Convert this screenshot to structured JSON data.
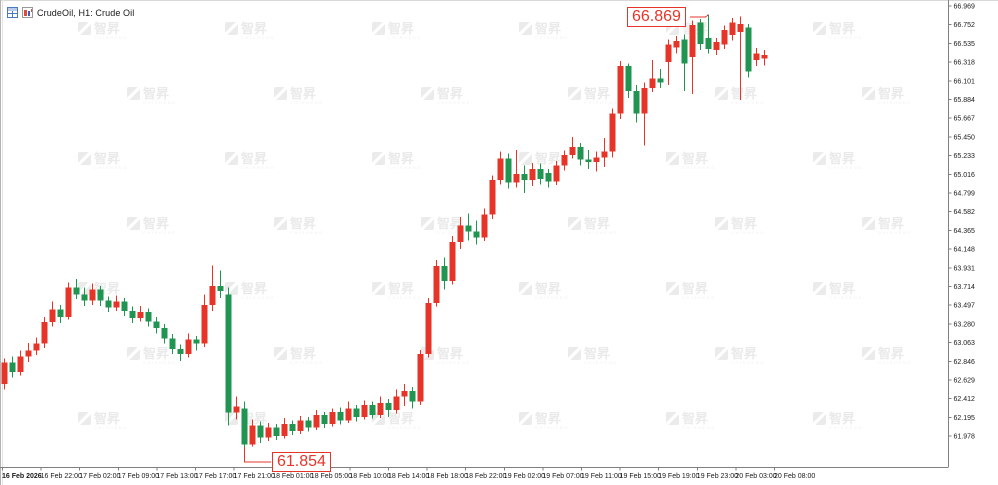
{
  "window": {
    "title": "CrudeOil, H1:  Crude Oil"
  },
  "colors": {
    "bullish": "#e63528",
    "bearish": "#209552",
    "axis_line": "#808080",
    "axis_text": "#1a1a1a",
    "callout": "#e63528",
    "watermark": "#ebebeb",
    "background": "#ffffff"
  },
  "watermark": {
    "text": "智昇",
    "subtext": "CHISHENG"
  },
  "callouts": {
    "high": {
      "label": "66.869",
      "price": 66.869,
      "candle_index": 88
    },
    "low": {
      "label": "61.854",
      "price": 61.854,
      "candle_index": 30
    }
  },
  "axes": {
    "y_labels": [
      "66.969",
      "66.752",
      "66.535",
      "66.318",
      "66.101",
      "65.884",
      "65.667",
      "65.450",
      "65.233",
      "65.016",
      "64.799",
      "64.582",
      "64.365",
      "64.148",
      "63.931",
      "63.714",
      "63.497",
      "63.280",
      "63.063",
      "62.846",
      "62.629",
      "62.412",
      "62.195",
      "61.978"
    ],
    "x_labels": [
      "16 Feb 2026",
      "16 Feb 22:00",
      "17 Feb 02:00",
      "17 Feb 09:00",
      "17 Feb 13:00",
      "17 Feb 17:00",
      "17 Feb 21:00",
      "18 Feb 01:00",
      "18 Feb 05:00",
      "18 Feb 10:00",
      "18 Feb 14:00",
      "18 Feb 18:00",
      "18 Feb 22:00",
      "19 Feb 02:00",
      "19 Feb 07:00",
      "19 Feb 11:00",
      "19 Feb 15:00",
      "19 Feb 19:00",
      "19 Feb 23:00",
      "20 Feb 03:00",
      "20 Feb 08:00"
    ]
  },
  "chart_data": {
    "type": "candlestick",
    "symbol": "CrudeOil",
    "timeframe": "H1",
    "title": "CrudeOil, H1:  Crude Oil",
    "color_convention": "red = bullish (up), green = bearish (down)",
    "price_step": 0.217,
    "y_range": [
      61.978,
      66.969
    ],
    "high": 66.869,
    "low": 61.854,
    "grid": false,
    "candles_ohlc": [
      [
        62.58,
        62.88,
        62.52,
        62.83
      ],
      [
        62.83,
        62.9,
        62.66,
        62.72
      ],
      [
        62.72,
        62.97,
        62.68,
        62.9
      ],
      [
        62.9,
        63.06,
        62.84,
        62.97
      ],
      [
        62.97,
        63.12,
        62.92,
        63.05
      ],
      [
        63.05,
        63.36,
        63.0,
        63.3
      ],
      [
        63.3,
        63.54,
        63.25,
        63.45
      ],
      [
        63.45,
        63.5,
        63.29,
        63.36
      ],
      [
        63.36,
        63.76,
        63.33,
        63.7
      ],
      [
        63.7,
        63.8,
        63.57,
        63.62
      ],
      [
        63.62,
        63.7,
        63.49,
        63.55
      ],
      [
        63.55,
        63.75,
        63.5,
        63.68
      ],
      [
        63.68,
        63.72,
        63.49,
        63.55
      ],
      [
        63.55,
        63.6,
        63.42,
        63.47
      ],
      [
        63.47,
        63.61,
        63.43,
        63.54
      ],
      [
        63.54,
        63.58,
        63.37,
        63.43
      ],
      [
        63.43,
        63.48,
        63.29,
        63.35
      ],
      [
        63.35,
        63.49,
        63.31,
        63.42
      ],
      [
        63.42,
        63.46,
        63.25,
        63.31
      ],
      [
        63.31,
        63.36,
        63.17,
        63.23
      ],
      [
        63.23,
        63.28,
        63.05,
        63.11
      ],
      [
        63.11,
        63.16,
        62.93,
        62.99
      ],
      [
        62.99,
        63.04,
        62.85,
        62.93
      ],
      [
        62.93,
        63.17,
        62.89,
        63.1
      ],
      [
        63.1,
        63.14,
        62.97,
        63.05
      ],
      [
        63.05,
        63.62,
        63.01,
        63.5
      ],
      [
        63.5,
        63.96,
        63.43,
        63.72
      ],
      [
        63.72,
        63.9,
        63.58,
        63.66
      ],
      [
        63.62,
        63.7,
        62.1,
        62.25
      ],
      [
        62.25,
        62.44,
        62.17,
        62.32
      ],
      [
        62.3,
        62.38,
        61.854,
        61.88
      ],
      [
        61.88,
        62.17,
        61.86,
        62.1
      ],
      [
        62.1,
        62.15,
        61.9,
        61.96
      ],
      [
        61.96,
        62.13,
        61.92,
        62.08
      ],
      [
        62.08,
        62.12,
        61.93,
        61.98
      ],
      [
        61.98,
        62.19,
        61.95,
        62.12
      ],
      [
        62.12,
        62.16,
        61.99,
        62.04
      ],
      [
        62.04,
        62.21,
        62.0,
        62.16
      ],
      [
        62.16,
        62.2,
        62.03,
        62.08
      ],
      [
        62.08,
        62.28,
        62.05,
        62.22
      ],
      [
        62.22,
        62.26,
        62.07,
        62.12
      ],
      [
        62.12,
        62.3,
        62.09,
        62.26
      ],
      [
        62.26,
        62.31,
        62.11,
        62.16
      ],
      [
        62.16,
        62.38,
        62.13,
        62.3
      ],
      [
        62.3,
        62.34,
        62.15,
        62.2
      ],
      [
        62.2,
        62.39,
        62.17,
        62.34
      ],
      [
        62.34,
        62.38,
        62.18,
        62.22
      ],
      [
        62.22,
        62.44,
        62.19,
        62.36
      ],
      [
        62.36,
        62.41,
        62.2,
        62.28
      ],
      [
        62.28,
        62.52,
        62.24,
        62.44
      ],
      [
        62.44,
        62.58,
        62.33,
        62.5
      ],
      [
        62.5,
        62.55,
        62.3,
        62.38
      ],
      [
        62.38,
        62.98,
        62.34,
        62.93
      ],
      [
        62.93,
        63.58,
        62.89,
        63.52
      ],
      [
        63.52,
        64.02,
        63.48,
        63.95
      ],
      [
        63.95,
        64.05,
        63.68,
        63.78
      ],
      [
        63.78,
        64.3,
        63.74,
        64.23
      ],
      [
        64.23,
        64.52,
        64.15,
        64.42
      ],
      [
        64.42,
        64.56,
        64.25,
        64.35
      ],
      [
        64.35,
        64.48,
        64.2,
        64.28
      ],
      [
        64.28,
        64.62,
        64.24,
        64.55
      ],
      [
        64.55,
        65.0,
        64.5,
        64.95
      ],
      [
        64.95,
        65.28,
        64.9,
        65.2
      ],
      [
        65.2,
        65.26,
        64.85,
        64.92
      ],
      [
        64.92,
        65.3,
        64.86,
        65.02
      ],
      [
        65.02,
        65.12,
        64.8,
        64.95
      ],
      [
        64.95,
        65.15,
        64.88,
        65.08
      ],
      [
        65.08,
        65.14,
        64.9,
        64.96
      ],
      [
        65.03,
        65.08,
        64.86,
        64.93
      ],
      [
        64.93,
        65.17,
        64.89,
        65.12
      ],
      [
        65.12,
        65.29,
        65.06,
        65.24
      ],
      [
        65.24,
        65.45,
        65.2,
        65.33
      ],
      [
        65.33,
        65.38,
        65.12,
        65.19
      ],
      [
        65.19,
        65.3,
        65.08,
        65.16
      ],
      [
        65.16,
        65.28,
        65.05,
        65.21
      ],
      [
        65.21,
        65.44,
        65.1,
        65.28
      ],
      [
        65.28,
        65.78,
        65.21,
        65.72
      ],
      [
        65.72,
        66.33,
        65.66,
        66.27
      ],
      [
        66.27,
        66.3,
        65.9,
        65.98
      ],
      [
        65.98,
        66.05,
        65.62,
        65.72
      ],
      [
        65.72,
        66.08,
        65.35,
        66.02
      ],
      [
        66.02,
        66.34,
        65.97,
        66.13
      ],
      [
        66.13,
        66.24,
        66.02,
        66.08
      ],
      [
        66.32,
        66.58,
        66.05,
        66.52
      ],
      [
        66.49,
        66.62,
        66.42,
        66.56
      ],
      [
        66.58,
        66.64,
        65.98,
        66.3
      ],
      [
        66.38,
        66.8,
        65.95,
        66.75
      ],
      [
        66.78,
        66.82,
        66.46,
        66.53
      ],
      [
        66.6,
        66.869,
        66.42,
        66.47
      ],
      [
        66.46,
        66.6,
        66.4,
        66.55
      ],
      [
        66.52,
        66.74,
        66.47,
        66.69
      ],
      [
        66.63,
        66.83,
        66.57,
        66.78
      ],
      [
        66.67,
        66.85,
        65.88,
        66.76
      ],
      [
        66.72,
        66.76,
        66.14,
        66.21
      ],
      [
        66.34,
        66.48,
        66.27,
        66.42
      ],
      [
        66.36,
        66.46,
        66.28,
        66.4
      ]
    ]
  }
}
